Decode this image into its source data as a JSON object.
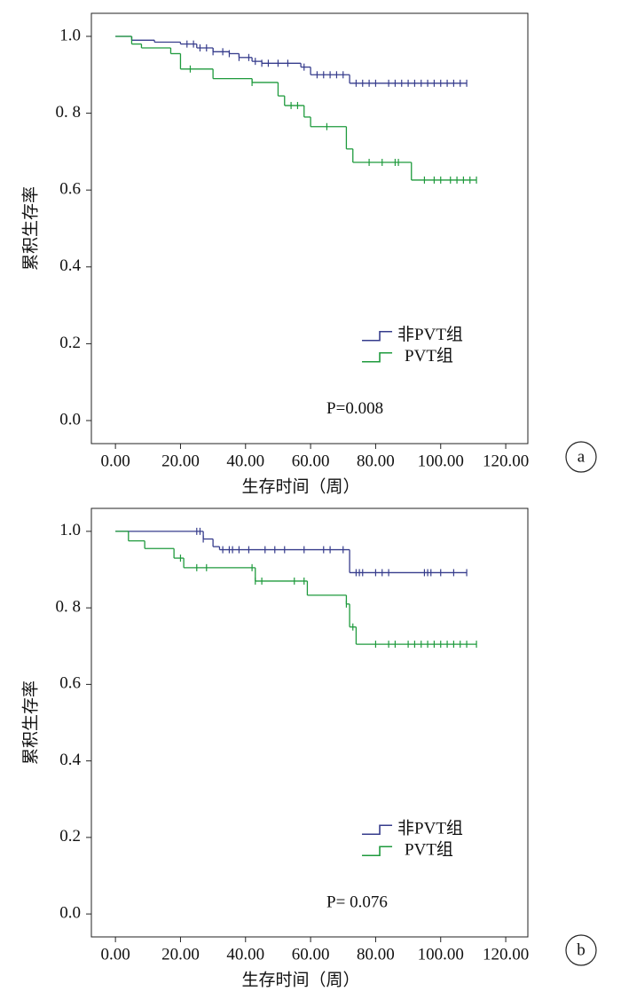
{
  "chart_data": [
    {
      "type": "step",
      "panel_label": "a",
      "xlabel": "生存时间（周）",
      "ylabel": "累积生存率",
      "annotation": "P=0.008",
      "legend": "lower right",
      "xlim": [
        -7.4,
        126.8
      ],
      "ylim": [
        -0.06,
        1.06
      ],
      "xticks": [
        {
          "value": 0,
          "label": "0.00"
        },
        {
          "value": 20,
          "label": "20.00"
        },
        {
          "value": 40,
          "label": "40.00"
        },
        {
          "value": 60,
          "label": "60.00"
        },
        {
          "value": 80,
          "label": "80.00"
        },
        {
          "value": 100,
          "label": "100.00"
        },
        {
          "value": 120,
          "label": "120.00"
        }
      ],
      "yticks": [
        {
          "value": 0,
          "label": "0.0"
        },
        0.2,
        0.4,
        0.6,
        {
          "value": 0.8,
          "label": "0. 8"
        },
        {
          "value": 1,
          "label": "1.0"
        }
      ],
      "series": [
        {
          "name": "非PVT组",
          "color": "#363c8c",
          "x": [
            0,
            5,
            12,
            20,
            25,
            30,
            35,
            38,
            42,
            45,
            57,
            60,
            72,
            108
          ],
          "values": [
            1.0,
            0.99,
            0.985,
            0.98,
            0.97,
            0.96,
            0.955,
            0.945,
            0.935,
            0.93,
            0.92,
            0.9,
            0.878,
            0.878
          ],
          "censored": [
            22,
            24,
            26,
            28,
            30,
            33,
            35,
            38,
            41,
            43,
            45,
            47,
            50,
            53,
            58,
            62,
            64,
            66,
            68,
            70,
            74,
            76,
            78,
            80,
            84,
            86,
            88,
            90,
            92,
            94,
            96,
            98,
            100,
            102,
            104,
            106,
            108
          ]
        },
        {
          "name": "PVT组",
          "color": "#1e9a3c",
          "x": [
            0,
            5,
            8,
            17,
            20,
            30,
            42,
            50,
            52,
            58,
            60,
            71,
            73,
            91,
            111
          ],
          "values": [
            1.0,
            0.98,
            0.97,
            0.955,
            0.915,
            0.89,
            0.88,
            0.845,
            0.82,
            0.79,
            0.765,
            0.707,
            0.672,
            0.626,
            0.626
          ],
          "censored": [
            23,
            42,
            54,
            56,
            65,
            78,
            82,
            86,
            87,
            95,
            98,
            100,
            103,
            105,
            107,
            109,
            111
          ]
        }
      ]
    },
    {
      "type": "step",
      "panel_label": "b",
      "xlabel": "生存时间（周）",
      "ylabel": "累积生存率",
      "annotation": "P= 0.076",
      "legend": "lower right",
      "xlim": [
        -7.4,
        126.8
      ],
      "ylim": [
        -0.06,
        1.06
      ],
      "xticks": [
        {
          "value": 0,
          "label": "0.00"
        },
        {
          "value": 20,
          "label": "20.00"
        },
        {
          "value": 40,
          "label": "40.00"
        },
        {
          "value": 60,
          "label": "60.00"
        },
        {
          "value": 80,
          "label": "80.00"
        },
        {
          "value": 100,
          "label": "100.00"
        },
        {
          "value": 120,
          "label": "120.00"
        }
      ],
      "yticks": [
        {
          "value": 0,
          "label": "0.0"
        },
        0.2,
        0.4,
        0.6,
        {
          "value": 0.8,
          "label": "0. 8"
        },
        {
          "value": 1,
          "label": "1.0"
        }
      ],
      "series": [
        {
          "name": "非PVT组",
          "color": "#363c8c",
          "x": [
            0,
            27,
            30,
            32,
            72,
            108
          ],
          "values": [
            1.0,
            0.98,
            0.96,
            0.952,
            0.892,
            0.892
          ],
          "censored": [
            25,
            26,
            27,
            33,
            35,
            36,
            38,
            41,
            46,
            49,
            52,
            58,
            64,
            66,
            70,
            74,
            75,
            76,
            80,
            82,
            84,
            95,
            96,
            97,
            100,
            104,
            108
          ]
        },
        {
          "name": "PVT组",
          "color": "#1e9a3c",
          "x": [
            0,
            4,
            9,
            18,
            21,
            43,
            59,
            71,
            72,
            74,
            111
          ],
          "values": [
            1.0,
            0.975,
            0.955,
            0.93,
            0.905,
            0.87,
            0.833,
            0.81,
            0.75,
            0.705,
            0.705
          ],
          "censored": [
            20,
            25,
            28,
            42,
            43,
            45,
            55,
            58,
            71,
            73,
            80,
            84,
            86,
            90,
            92,
            94,
            96,
            98,
            100,
            102,
            104,
            106,
            108,
            111
          ]
        }
      ]
    }
  ]
}
